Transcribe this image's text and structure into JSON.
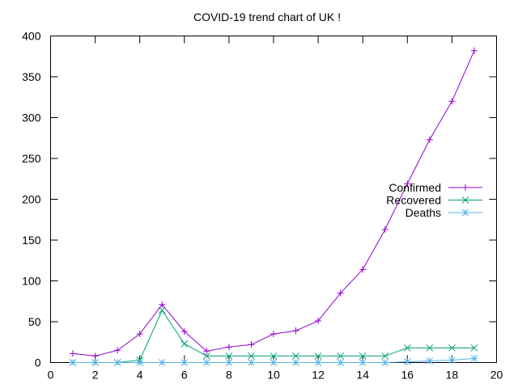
{
  "chart_data": {
    "type": "line",
    "title": "COVID-19 trend chart of UK !",
    "xlabel": "",
    "ylabel": "",
    "xlim": [
      0,
      20
    ],
    "ylim": [
      0,
      400
    ],
    "x_ticks": [
      0,
      2,
      4,
      6,
      8,
      10,
      12,
      14,
      16,
      18,
      20
    ],
    "y_ticks": [
      0,
      50,
      100,
      150,
      200,
      250,
      300,
      350,
      400
    ],
    "grid": false,
    "legend_position": "right",
    "series": [
      {
        "name": "Confirmed",
        "color": "#9400d3",
        "marker": "plus",
        "x": [
          1,
          2,
          3,
          4,
          5,
          6,
          7,
          8,
          9,
          10,
          11,
          12,
          13,
          14,
          15,
          16,
          17,
          18,
          19
        ],
        "values": [
          11,
          8,
          15,
          35,
          71,
          38,
          14,
          19,
          22,
          35,
          39,
          51,
          85,
          114,
          163,
          219,
          273,
          320,
          382
        ]
      },
      {
        "name": "Recovered",
        "color": "#009e73",
        "marker": "cross",
        "x": [
          1,
          2,
          3,
          4,
          5,
          6,
          7,
          8,
          9,
          10,
          11,
          12,
          13,
          14,
          15,
          16,
          17,
          18,
          19
        ],
        "values": [
          0,
          0,
          0,
          3,
          64,
          23,
          8,
          8,
          8,
          8,
          8,
          8,
          8,
          8,
          8,
          18,
          18,
          18,
          18
        ]
      },
      {
        "name": "Deaths",
        "color": "#56b4e9",
        "marker": "star",
        "x": [
          1,
          2,
          3,
          4,
          5,
          6,
          7,
          8,
          9,
          10,
          11,
          12,
          13,
          14,
          15,
          16,
          17,
          18,
          19
        ],
        "values": [
          0,
          0,
          0,
          0,
          0,
          0,
          0,
          0,
          0,
          0,
          0,
          0,
          0,
          0,
          0,
          1,
          2,
          3,
          5
        ]
      }
    ]
  }
}
